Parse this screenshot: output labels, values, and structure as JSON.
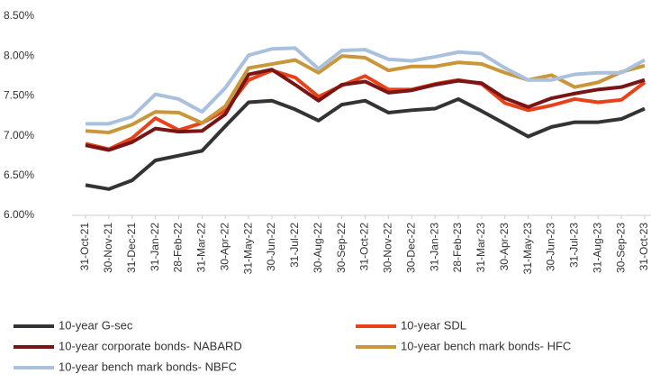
{
  "chart_data": {
    "type": "line",
    "categories": [
      "31-Oct-21",
      "30-Nov-21",
      "31-Dec-21",
      "31-Jan-22",
      "28-Feb-22",
      "31-Mar-22",
      "30-Apr-22",
      "31-May-22",
      "30-Jun-22",
      "31-Jul-22",
      "30-Aug-22",
      "30-Sep-22",
      "31-Oct-22",
      "30-Nov-22",
      "30-Dec-22",
      "31-Jan-23",
      "28-Feb-23",
      "31-Mar-23",
      "30-Apr-23",
      "31-May-23",
      "30-Jun-23",
      "31-Jul-23",
      "31-Aug-23",
      "30-Sep-23",
      "31-Oct-23"
    ],
    "ylim": [
      6,
      8.5
    ],
    "yticks": [
      {
        "value": 6,
        "label": "6.00%"
      },
      {
        "value": 6.5,
        "label": "6.50%"
      },
      {
        "value": 7,
        "label": "7.00%"
      },
      {
        "value": 7.5,
        "label": "7.50%"
      },
      {
        "value": 8,
        "label": "8.00%"
      },
      {
        "value": 8.5,
        "label": "8.50%"
      }
    ],
    "grid": false,
    "series": [
      {
        "name": "10-year G-sec",
        "color": "#333333",
        "values": [
          6.38,
          6.33,
          6.44,
          6.69,
          6.75,
          6.81,
          7.12,
          7.42,
          7.44,
          7.33,
          7.19,
          7.39,
          7.44,
          7.29,
          7.32,
          7.34,
          7.46,
          7.31,
          7.15,
          6.99,
          7.11,
          7.17,
          7.17,
          7.21,
          7.34
        ]
      },
      {
        "name": "10-year SDL",
        "color": "#e8421a",
        "values": [
          6.9,
          6.83,
          6.97,
          7.22,
          7.07,
          7.16,
          7.32,
          7.7,
          7.82,
          7.73,
          7.49,
          7.63,
          7.75,
          7.58,
          7.58,
          7.65,
          7.7,
          7.65,
          7.41,
          7.32,
          7.38,
          7.46,
          7.42,
          7.45,
          7.67
        ]
      },
      {
        "name": "10-year corporate bonds- NABARD",
        "color": "#7a1516",
        "values": [
          6.88,
          6.82,
          6.92,
          7.09,
          7.05,
          7.06,
          7.27,
          7.77,
          7.83,
          7.64,
          7.44,
          7.64,
          7.68,
          7.54,
          7.57,
          7.64,
          7.69,
          7.66,
          7.47,
          7.36,
          7.47,
          7.53,
          7.58,
          7.61,
          7.7
        ]
      },
      {
        "name": "10-year bench mark bonds- HFC",
        "color": "#c9963a",
        "values": [
          7.06,
          7.04,
          7.14,
          7.3,
          7.29,
          7.16,
          7.37,
          7.85,
          7.9,
          7.95,
          7.79,
          8.0,
          7.98,
          7.82,
          7.87,
          7.87,
          7.92,
          7.9,
          7.79,
          7.7,
          7.76,
          7.61,
          7.67,
          7.8,
          7.88
        ]
      },
      {
        "name": "10-year bench mark bonds- NBFC",
        "color": "#a9c1dc",
        "values": [
          7.15,
          7.15,
          7.24,
          7.52,
          7.46,
          7.3,
          7.6,
          8.01,
          8.09,
          8.1,
          7.84,
          8.07,
          8.08,
          7.96,
          7.94,
          7.99,
          8.05,
          8.03,
          7.85,
          7.7,
          7.7,
          7.77,
          7.79,
          7.79,
          7.95
        ]
      }
    ]
  }
}
